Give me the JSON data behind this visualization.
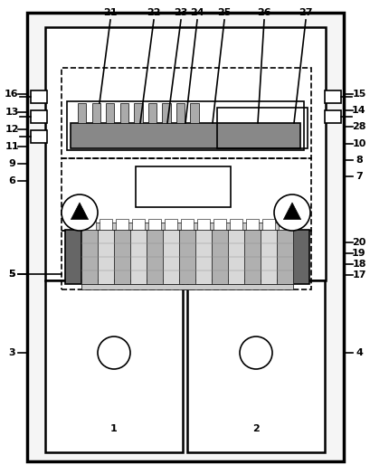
{
  "bg_color": "#ffffff",
  "lc": "#000000",
  "gray_dark": "#666666",
  "gray_med": "#999999",
  "gray_light": "#cccccc",
  "gray_heatsink": "#aaaaaa",
  "gray_pcb": "#888888"
}
